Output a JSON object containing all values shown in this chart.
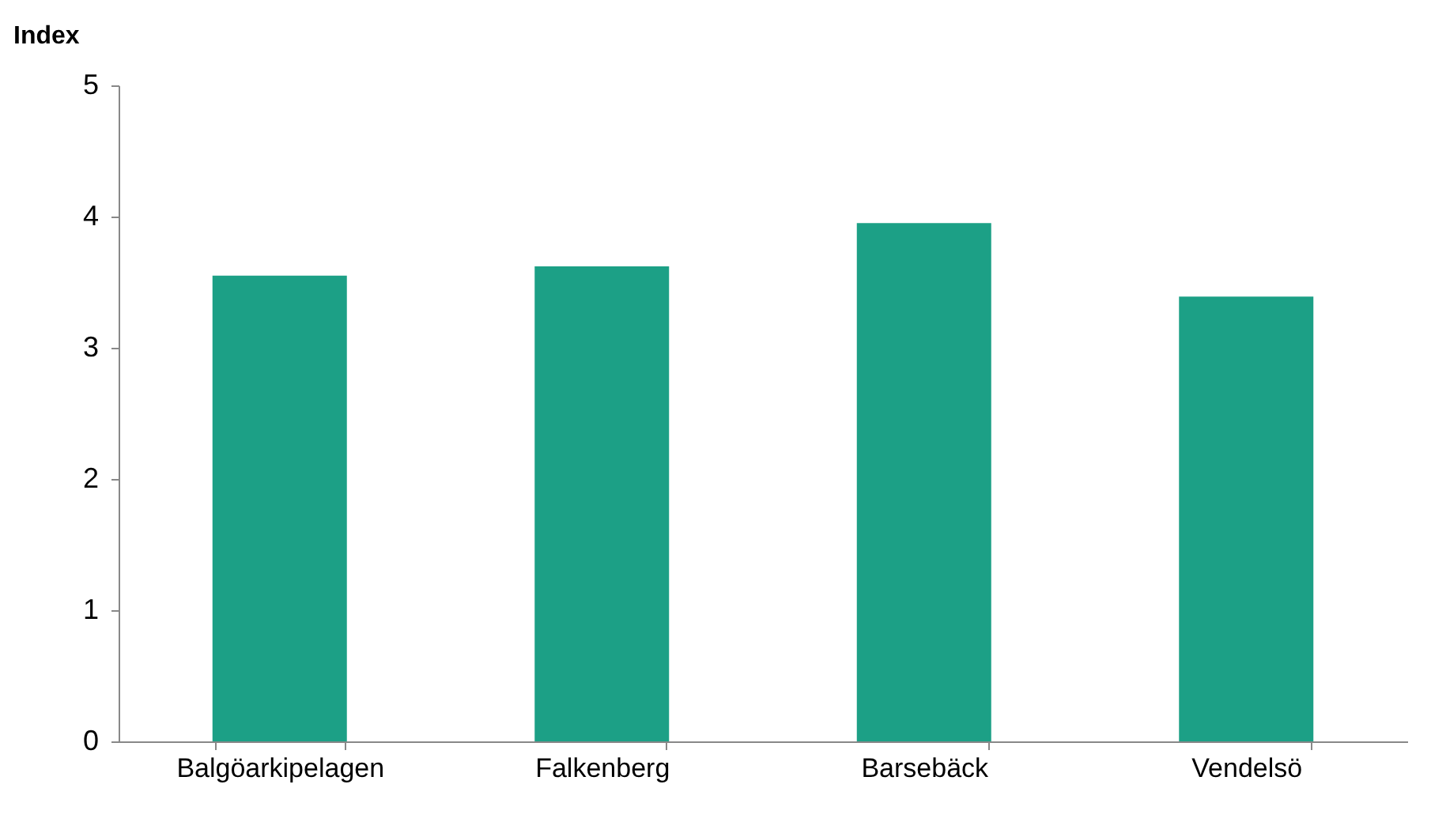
{
  "chart_data": {
    "type": "bar",
    "ylabel": "Index",
    "categories": [
      "Balgöarkipelagen",
      "Falkenberg",
      "Barsebäck",
      "Vendelsö"
    ],
    "values": [
      3.55,
      3.62,
      3.95,
      3.39
    ],
    "color": "#1ca086",
    "ylim": [
      0,
      5
    ],
    "yticks": [
      0,
      1,
      2,
      3,
      4,
      5
    ],
    "grid": false
  }
}
